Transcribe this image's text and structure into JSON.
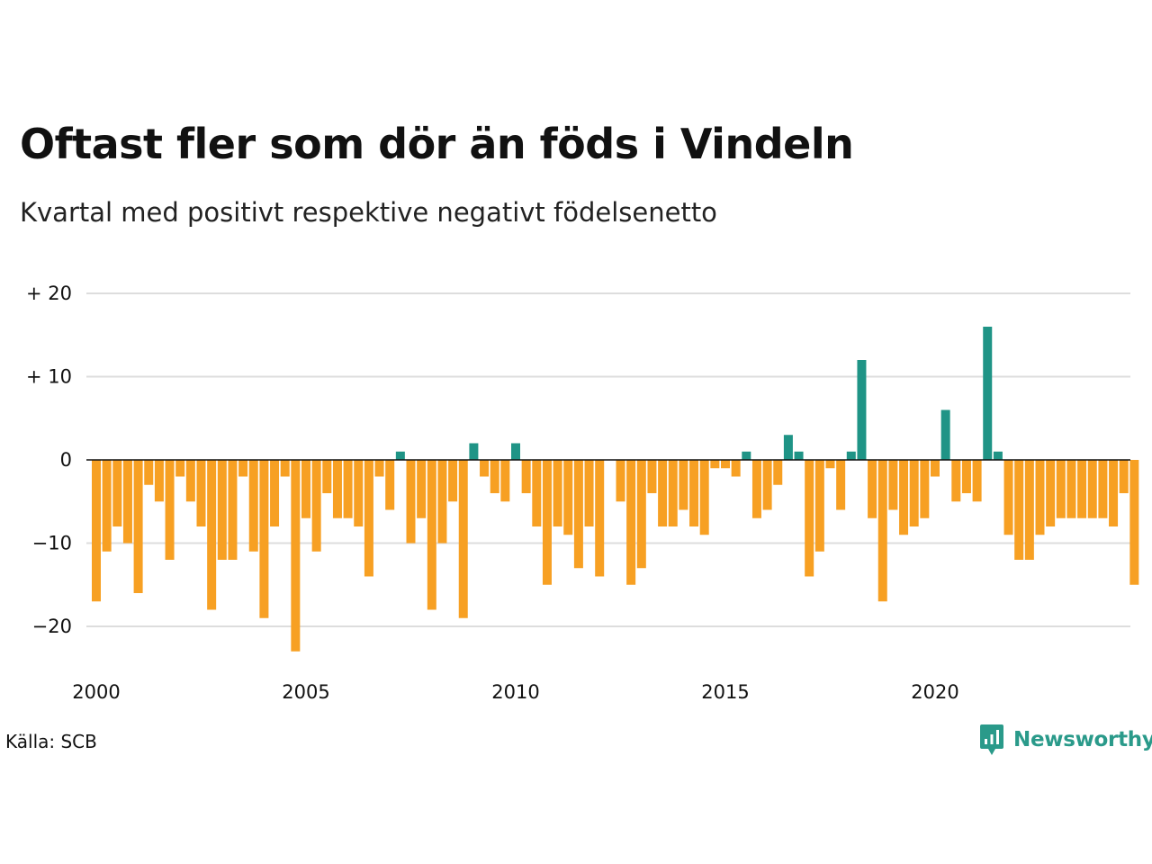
{
  "title": "Oftast fler som dör än föds i Vindeln",
  "subtitle": "Kvartal med positivt respektive negativt födelsenetto",
  "source": "Källa: SCB",
  "brand": {
    "name": "Newsworthy",
    "icon": "newsworthy-logo-icon"
  },
  "colors": {
    "positive": "#1f9486",
    "negative": "#f7a023",
    "grid": "#dddddd",
    "axis": "#111111",
    "brand": "#2a9a8a"
  },
  "chart_data": {
    "type": "bar",
    "title": "Oftast fler som dör än föds i Vindeln",
    "subtitle": "Kvartal med positivt respektive negativt födelsenetto",
    "xlabel": "",
    "ylabel": "",
    "ylim": [
      -25,
      22
    ],
    "grid": true,
    "y_ticks": [
      20,
      10,
      0,
      -10,
      -20
    ],
    "y_tick_labels": [
      "+ 20",
      "+ 10",
      "0",
      "−10",
      "−20"
    ],
    "x_ticks": [
      2000,
      2005,
      2010,
      2015,
      2020
    ],
    "x_tick_labels": [
      "2000",
      "2005",
      "2010",
      "2015",
      "2020"
    ],
    "quarters_per_year": 4,
    "start_year": 2000,
    "values": [
      -17,
      -11,
      -8,
      -10,
      -16,
      -3,
      -5,
      -12,
      -2,
      -5,
      -8,
      -18,
      -12,
      -12,
      -2,
      -11,
      -19,
      -8,
      -2,
      -23,
      -7,
      -11,
      -4,
      -7,
      -7,
      -8,
      -14,
      -2,
      -6,
      1,
      -10,
      -7,
      -18,
      -10,
      -5,
      -19,
      2,
      -2,
      -4,
      -5,
      2,
      -4,
      -8,
      -15,
      -8,
      -9,
      -13,
      -8,
      -14,
      0,
      -5,
      -15,
      -13,
      -4,
      -8,
      -8,
      -6,
      -8,
      -9,
      -1,
      -1,
      -2,
      1,
      -7,
      -6,
      -3,
      3,
      1,
      -14,
      -11,
      -1,
      -6,
      1,
      12,
      -7,
      -17,
      -6,
      -9,
      -8,
      -7,
      -2,
      6,
      -5,
      -4,
      -5,
      16,
      1,
      -9,
      -12,
      -12,
      -9,
      -8,
      -7,
      -7,
      -7,
      -7,
      -7,
      -8,
      -4,
      -15
    ]
  }
}
